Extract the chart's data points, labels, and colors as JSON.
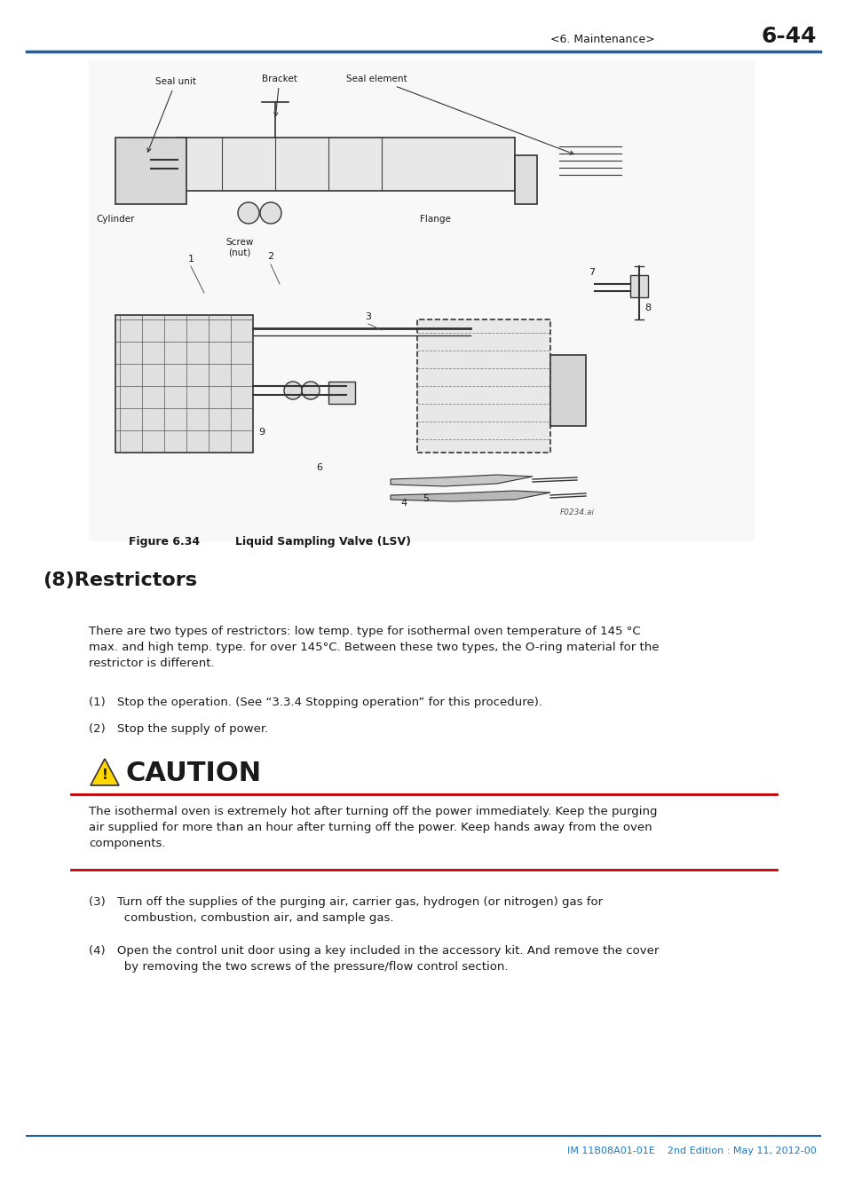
{
  "page_header_left": "<6. Maintenance>",
  "page_header_right": "6-44",
  "header_line_color": "#1a5fa8",
  "section_title": "(8)Restrictors",
  "body_text_1": "There are two types of restrictors: low temp. type for isothermal oven temperature of 145 °C\nmax. and high temp. type. for over 145°C. Between these two types, the O-ring material for the\nrestrictor is different.",
  "item1": "(1) Stop the operation. (See “3.3.4 Stopping operation” for this procedure).",
  "item2": "(2) Stop the supply of power.",
  "caution_title": "CAUTION",
  "caution_body": "The isothermal oven is extremely hot after turning off the power immediately. Keep the purging\nair supplied for more than an hour after turning off the power. Keep hands away from the oven\ncomponents.",
  "item3": "(3) Turn off the supplies of the purging air, carrier gas, hydrogen (or nitrogen) gas for\n   combustion, combustion air, and sample gas.",
  "item4": "(4) Open the control unit door using a key included in the accessory kit. And remove the cover\n   by removing the two screws of the pressure/flow control section.",
  "figure_caption_label": "Figure 6.34",
  "figure_caption_text": "Liquid Sampling Valve (LSV)",
  "footer_line_color": "#1a5fa8",
  "footer_text": "IM 11B08A01-01E    2nd Edition : May 11, 2012-00",
  "footer_text_color": "#1a7abf",
  "bg_color": "#ffffff",
  "text_color": "#1a1a1a",
  "caution_line_color": "#cc0000",
  "caution_bg_color": "#ffffff",
  "diagram_labels": [
    "Seal unit",
    "Bracket",
    "Seal element",
    "Cylinder",
    "Screw\n(nut)",
    "Flange"
  ],
  "diagram_numbers": [
    "1",
    "2",
    "3",
    "4",
    "5",
    "6",
    "7",
    "8",
    "9"
  ],
  "f0234_label": "F0234.ai"
}
